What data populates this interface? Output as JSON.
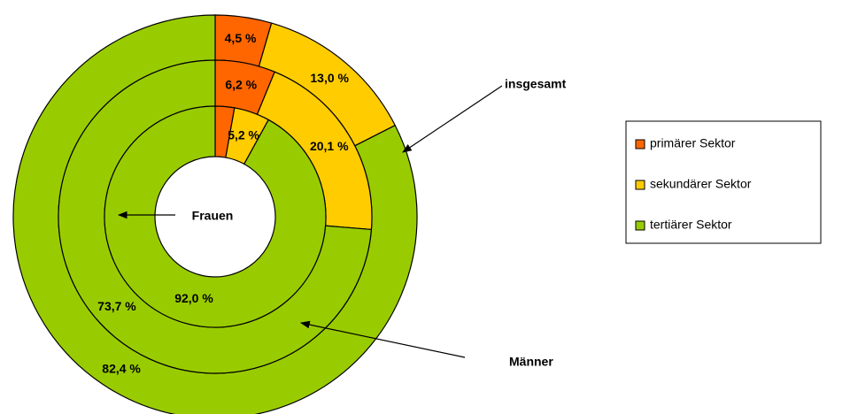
{
  "chart_data": {
    "type": "pie",
    "categories": [
      "primärer Sektor",
      "sekundärer Sektor",
      "tertiärer Sektor"
    ],
    "colors": [
      "#ff6600",
      "#ffcc00",
      "#99cc00"
    ],
    "series": [
      {
        "name": "insgesamt",
        "values": [
          4.5,
          13.0,
          82.4
        ],
        "value_labels": [
          "4,5 %",
          "13,0 %",
          "82,4 %"
        ]
      },
      {
        "name": "Männer",
        "values": [
          6.2,
          20.1,
          73.7
        ],
        "value_labels": [
          "6,2 %",
          "20,1 %",
          "73,7 %"
        ]
      },
      {
        "name": "Frauen",
        "values": [
          2.8,
          5.2,
          92.0
        ],
        "value_labels": [
          null,
          "5,2 %",
          "92,0 %"
        ]
      }
    ],
    "legend": "right"
  }
}
